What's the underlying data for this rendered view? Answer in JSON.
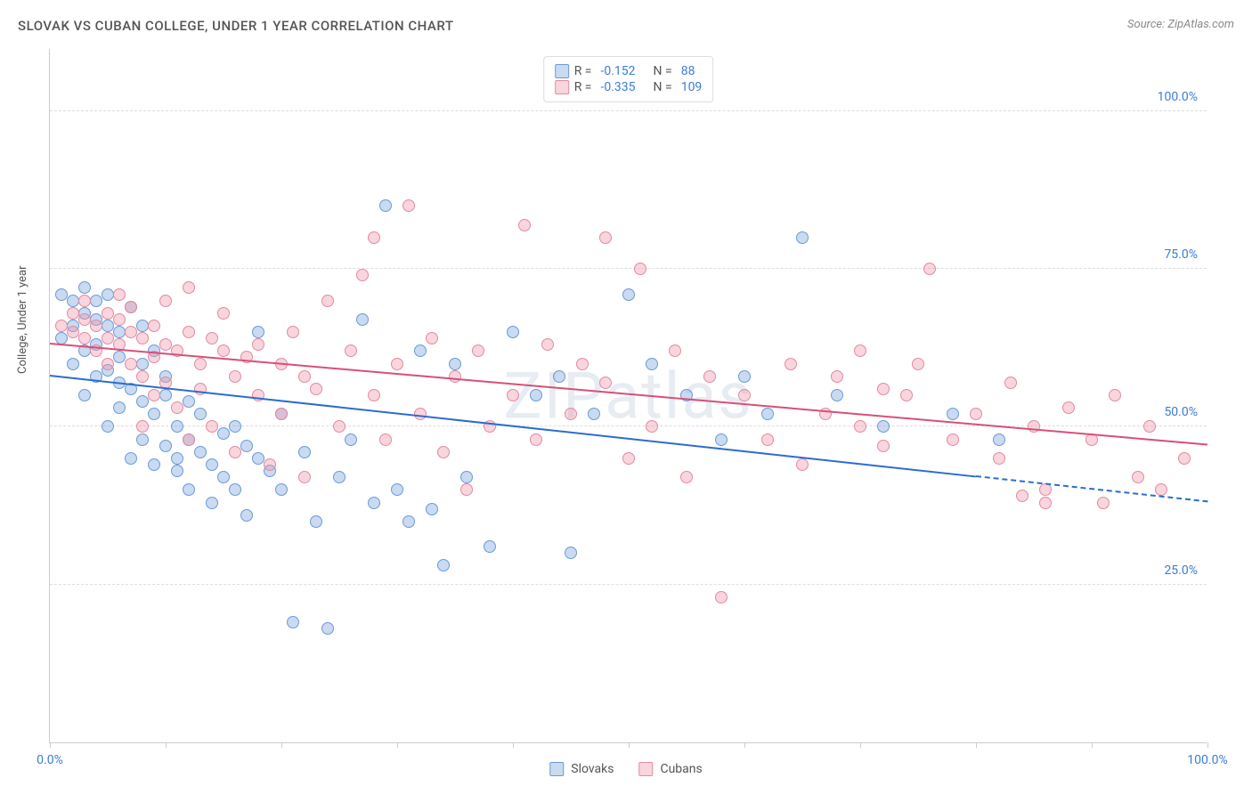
{
  "title": "SLOVAK VS CUBAN COLLEGE, UNDER 1 YEAR CORRELATION CHART",
  "source": "Source: ZipAtlas.com",
  "y_axis_label": "College, Under 1 year",
  "watermark": "ZIPatlas",
  "chart": {
    "type": "scatter",
    "xlim": [
      0,
      100
    ],
    "ylim": [
      0,
      110
    ],
    "y_gridlines": [
      25,
      50,
      75,
      100
    ],
    "y_tick_labels": [
      "25.0%",
      "50.0%",
      "75.0%",
      "100.0%"
    ],
    "x_ticks": [
      0,
      10,
      20,
      30,
      40,
      50,
      60,
      70,
      80,
      90,
      100
    ],
    "x_tick_labels": {
      "0": "0.0%",
      "100": "100.0%"
    },
    "background_color": "#ffffff",
    "grid_color": "#dddddd",
    "axis_color": "#cccccc",
    "label_color": "#555555",
    "tick_label_color": "#3b7dd8",
    "point_radius": 7,
    "series": {
      "slovaks": {
        "label": "Slovaks",
        "fill": "rgba(119,162,219,0.40)",
        "stroke": "#6a9bd8",
        "trend_color": "#2b6cd0",
        "trend": {
          "x0": 0,
          "y0": 58,
          "x1": 80,
          "y1": 42,
          "dashed_from": 80,
          "x2": 100,
          "y2": 38
        },
        "R": "-0.152",
        "N": "88",
        "points": [
          [
            1,
            71
          ],
          [
            1,
            64
          ],
          [
            2,
            70
          ],
          [
            2,
            66
          ],
          [
            2,
            60
          ],
          [
            3,
            68
          ],
          [
            3,
            72
          ],
          [
            3,
            62
          ],
          [
            3,
            55
          ],
          [
            4,
            67
          ],
          [
            4,
            63
          ],
          [
            4,
            58
          ],
          [
            4,
            70
          ],
          [
            5,
            66
          ],
          [
            5,
            71
          ],
          [
            5,
            59
          ],
          [
            5,
            50
          ],
          [
            6,
            65
          ],
          [
            6,
            57
          ],
          [
            6,
            61
          ],
          [
            6,
            53
          ],
          [
            7,
            69
          ],
          [
            7,
            56
          ],
          [
            7,
            45
          ],
          [
            8,
            60
          ],
          [
            8,
            54
          ],
          [
            8,
            48
          ],
          [
            8,
            66
          ],
          [
            9,
            62
          ],
          [
            9,
            52
          ],
          [
            9,
            44
          ],
          [
            10,
            55
          ],
          [
            10,
            47
          ],
          [
            10,
            58
          ],
          [
            11,
            50
          ],
          [
            11,
            45
          ],
          [
            11,
            43
          ],
          [
            12,
            48
          ],
          [
            12,
            54
          ],
          [
            12,
            40
          ],
          [
            13,
            52
          ],
          [
            13,
            46
          ],
          [
            14,
            44
          ],
          [
            14,
            38
          ],
          [
            15,
            49
          ],
          [
            15,
            42
          ],
          [
            16,
            50
          ],
          [
            16,
            40
          ],
          [
            17,
            47
          ],
          [
            17,
            36
          ],
          [
            18,
            45
          ],
          [
            18,
            65
          ],
          [
            19,
            43
          ],
          [
            20,
            52
          ],
          [
            20,
            40
          ],
          [
            21,
            19
          ],
          [
            22,
            46
          ],
          [
            23,
            35
          ],
          [
            24,
            18
          ],
          [
            25,
            42
          ],
          [
            26,
            48
          ],
          [
            27,
            67
          ],
          [
            28,
            38
          ],
          [
            29,
            85
          ],
          [
            30,
            40
          ],
          [
            31,
            35
          ],
          [
            32,
            62
          ],
          [
            33,
            37
          ],
          [
            34,
            28
          ],
          [
            35,
            60
          ],
          [
            36,
            42
          ],
          [
            38,
            31
          ],
          [
            40,
            65
          ],
          [
            42,
            55
          ],
          [
            44,
            58
          ],
          [
            45,
            30
          ],
          [
            47,
            52
          ],
          [
            50,
            71
          ],
          [
            52,
            60
          ],
          [
            55,
            55
          ],
          [
            58,
            48
          ],
          [
            60,
            58
          ],
          [
            62,
            52
          ],
          [
            65,
            80
          ],
          [
            68,
            55
          ],
          [
            72,
            50
          ],
          [
            78,
            52
          ],
          [
            82,
            48
          ]
        ]
      },
      "cubans": {
        "label": "Cubans",
        "fill": "rgba(240,150,170,0.40)",
        "stroke": "#e38aa0",
        "trend_color": "#d94f77",
        "trend": {
          "x0": 0,
          "y0": 63,
          "x1": 100,
          "y1": 47
        },
        "R": "-0.335",
        "N": "109",
        "points": [
          [
            1,
            66
          ],
          [
            2,
            65
          ],
          [
            2,
            68
          ],
          [
            3,
            67
          ],
          [
            3,
            64
          ],
          [
            3,
            70
          ],
          [
            4,
            66
          ],
          [
            4,
            62
          ],
          [
            5,
            68
          ],
          [
            5,
            64
          ],
          [
            5,
            60
          ],
          [
            6,
            67
          ],
          [
            6,
            63
          ],
          [
            6,
            71
          ],
          [
            7,
            65
          ],
          [
            7,
            60
          ],
          [
            7,
            69
          ],
          [
            8,
            64
          ],
          [
            8,
            58
          ],
          [
            8,
            50
          ],
          [
            9,
            66
          ],
          [
            9,
            61
          ],
          [
            9,
            55
          ],
          [
            10,
            63
          ],
          [
            10,
            70
          ],
          [
            10,
            57
          ],
          [
            11,
            62
          ],
          [
            11,
            53
          ],
          [
            12,
            65
          ],
          [
            12,
            48
          ],
          [
            13,
            60
          ],
          [
            13,
            56
          ],
          [
            14,
            64
          ],
          [
            14,
            50
          ],
          [
            15,
            62
          ],
          [
            15,
            68
          ],
          [
            16,
            58
          ],
          [
            16,
            46
          ],
          [
            17,
            61
          ],
          [
            18,
            55
          ],
          [
            18,
            63
          ],
          [
            19,
            44
          ],
          [
            20,
            60
          ],
          [
            20,
            52
          ],
          [
            21,
            65
          ],
          [
            22,
            58
          ],
          [
            22,
            42
          ],
          [
            23,
            56
          ],
          [
            24,
            70
          ],
          [
            25,
            50
          ],
          [
            26,
            62
          ],
          [
            27,
            74
          ],
          [
            28,
            55
          ],
          [
            29,
            48
          ],
          [
            30,
            60
          ],
          [
            31,
            85
          ],
          [
            32,
            52
          ],
          [
            33,
            64
          ],
          [
            34,
            46
          ],
          [
            35,
            58
          ],
          [
            36,
            40
          ],
          [
            37,
            62
          ],
          [
            38,
            50
          ],
          [
            40,
            55
          ],
          [
            41,
            82
          ],
          [
            42,
            48
          ],
          [
            43,
            63
          ],
          [
            45,
            52
          ],
          [
            46,
            60
          ],
          [
            48,
            57
          ],
          [
            50,
            45
          ],
          [
            51,
            75
          ],
          [
            52,
            50
          ],
          [
            54,
            62
          ],
          [
            55,
            42
          ],
          [
            57,
            58
          ],
          [
            58,
            23
          ],
          [
            60,
            55
          ],
          [
            62,
            48
          ],
          [
            64,
            60
          ],
          [
            65,
            44
          ],
          [
            67,
            52
          ],
          [
            68,
            58
          ],
          [
            70,
            50
          ],
          [
            72,
            47
          ],
          [
            74,
            55
          ],
          [
            75,
            60
          ],
          [
            76,
            75
          ],
          [
            78,
            48
          ],
          [
            80,
            52
          ],
          [
            82,
            45
          ],
          [
            83,
            57
          ],
          [
            85,
            50
          ],
          [
            86,
            40
          ],
          [
            88,
            53
          ],
          [
            90,
            48
          ],
          [
            91,
            38
          ],
          [
            92,
            55
          ],
          [
            94,
            42
          ],
          [
            95,
            50
          ],
          [
            96,
            40
          ],
          [
            98,
            45
          ],
          [
            84,
            39
          ],
          [
            86,
            38
          ],
          [
            70,
            62
          ],
          [
            72,
            56
          ],
          [
            28,
            80
          ],
          [
            48,
            80
          ],
          [
            12,
            72
          ]
        ]
      }
    }
  },
  "legend_top": [
    {
      "series": "slovaks",
      "r_label": "R =",
      "n_label": "N ="
    },
    {
      "series": "cubans",
      "r_label": "R =",
      "n_label": "N ="
    }
  ],
  "legend_bottom": [
    "slovaks",
    "cubans"
  ]
}
